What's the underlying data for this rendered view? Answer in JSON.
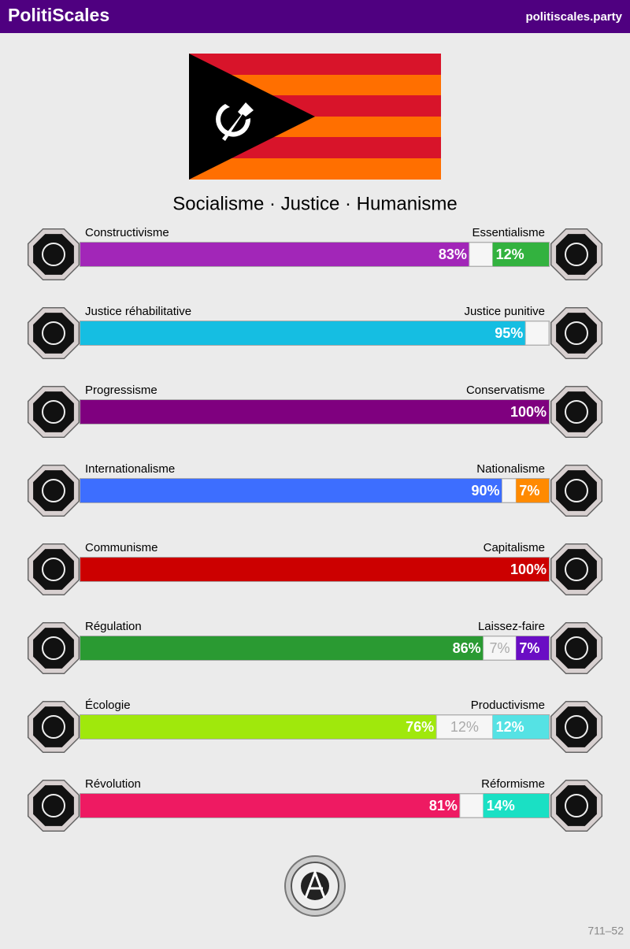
{
  "header": {
    "title": "PolitiScales",
    "site": "politiscales.party"
  },
  "slogan": "Socialisme · Justice · Humanisme",
  "axes": [
    {
      "left": {
        "name": "Constructivisme",
        "value": 83,
        "label": "83%",
        "color": "#a226b8"
      },
      "middle": {
        "value": 5
      },
      "right": {
        "name": "Essentialisme",
        "value": 12,
        "label": "12%",
        "color": "#33b23f"
      }
    },
    {
      "left": {
        "name": "Justice réhabilitative",
        "value": 95,
        "label": "95%",
        "color": "#15bee2"
      },
      "middle": {
        "value": 5
      },
      "right": {
        "name": "Justice punitive"
      }
    },
    {
      "left": {
        "name": "Progressisme",
        "value": 100,
        "label": "100%",
        "color": "#7f007f"
      },
      "right": {
        "name": "Conservatisme"
      }
    },
    {
      "left": {
        "name": "Internationalisme",
        "value": 90,
        "label": "90%",
        "color": "#3d6eff"
      },
      "middle": {
        "value": 3
      },
      "right": {
        "name": "Nationalisme",
        "value": 7,
        "label": "7%",
        "color": "#ff8a00"
      }
    },
    {
      "left": {
        "name": "Communisme",
        "value": 100,
        "label": "100%",
        "color": "#cc0000"
      },
      "right": {
        "name": "Capitalisme"
      }
    },
    {
      "left": {
        "name": "Régulation",
        "value": 86,
        "label": "86%",
        "color": "#2a9a32"
      },
      "middle": {
        "value": 7,
        "label": "7%"
      },
      "right": {
        "name": "Laissez-faire",
        "value": 7,
        "label": "7%",
        "color": "#6a0dc4"
      }
    },
    {
      "left": {
        "name": "Écologie",
        "value": 76,
        "label": "76%",
        "color": "#a0e80c"
      },
      "middle": {
        "value": 12,
        "label": "12%"
      },
      "right": {
        "name": "Productivisme",
        "value": 12,
        "label": "12%",
        "color": "#55e2e4"
      }
    },
    {
      "left": {
        "name": "Révolution",
        "value": 81,
        "label": "81%",
        "color": "#ee1a62"
      },
      "middle": {
        "value": 5
      },
      "right": {
        "name": "Réformisme",
        "value": 14,
        "label": "14%",
        "color": "#1ae0c4"
      }
    }
  ],
  "footer": {
    "code": "711–52"
  }
}
